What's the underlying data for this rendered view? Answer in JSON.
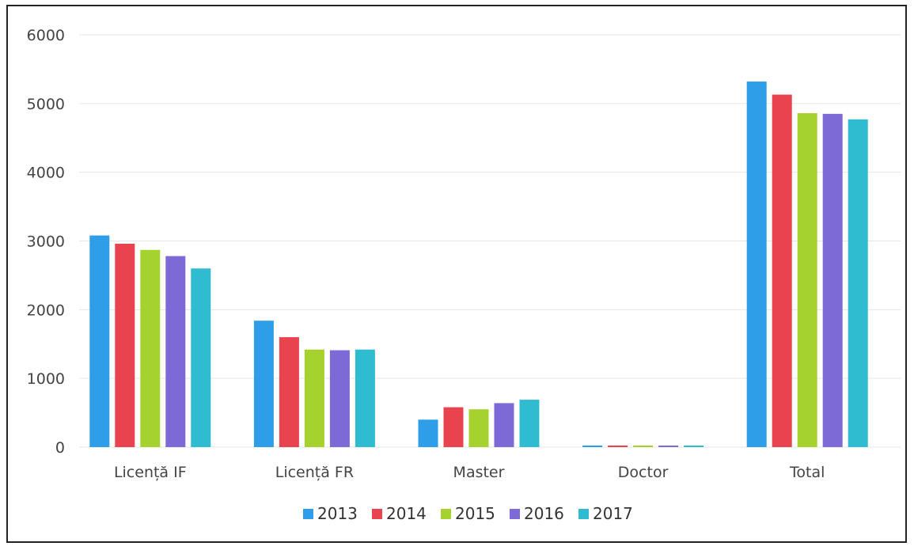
{
  "chart_data": {
    "type": "bar",
    "title": "",
    "xlabel": "",
    "ylabel": "",
    "ylim": [
      0,
      6000
    ],
    "yticks": [
      0,
      1000,
      2000,
      3000,
      4000,
      5000,
      6000
    ],
    "grid": true,
    "legend_position": "bottom",
    "categories": [
      "Licență IF",
      "Licență FR",
      "Master",
      "Doctor",
      "Total"
    ],
    "series": [
      {
        "name": "2013",
        "color": "#2e9ee8",
        "values": [
          3080,
          1840,
          400,
          10,
          5320
        ]
      },
      {
        "name": "2014",
        "color": "#e8434f",
        "values": [
          2960,
          1600,
          580,
          10,
          5130
        ]
      },
      {
        "name": "2015",
        "color": "#a5d22e",
        "values": [
          2870,
          1420,
          550,
          10,
          4860
        ]
      },
      {
        "name": "2016",
        "color": "#7e6ad6",
        "values": [
          2780,
          1410,
          640,
          10,
          4850
        ]
      },
      {
        "name": "2017",
        "color": "#30bcd0",
        "values": [
          2600,
          1420,
          690,
          10,
          4770
        ]
      }
    ]
  }
}
